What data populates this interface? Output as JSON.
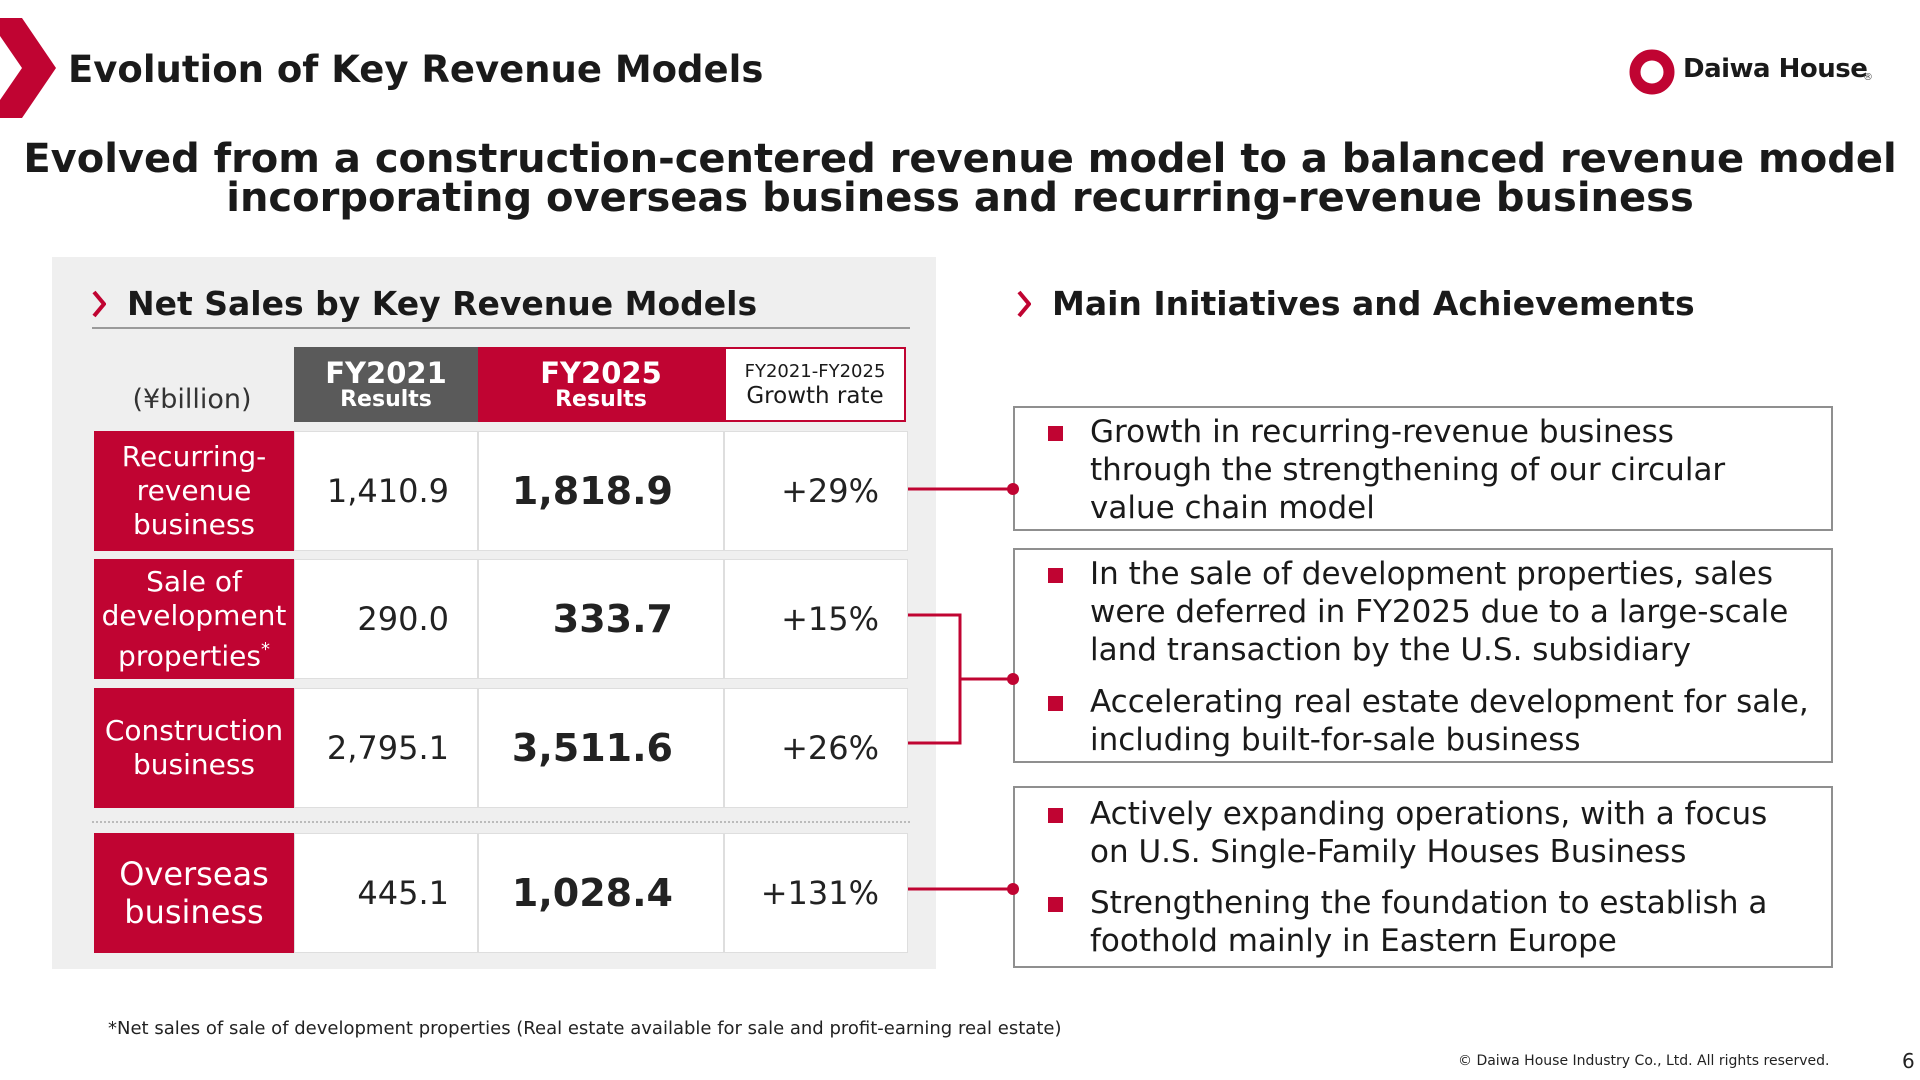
{
  "header": {
    "title": "Evolution of Key Revenue Models",
    "logo_text": "Daiwa House",
    "logo_reg": "®",
    "brand_color": "#c00432"
  },
  "headline": {
    "line1": "Evolved from a construction-centered revenue model to a balanced revenue model",
    "line2": "incorporating overseas business and recurring-revenue business"
  },
  "net_sales": {
    "heading": "Net Sales by Key Revenue Models",
    "unit": "(¥billion)",
    "col_fy2021": {
      "year": "FY2021",
      "sub": "Results"
    },
    "col_fy2025": {
      "year": "FY2025",
      "sub": "Results"
    },
    "col_growth": {
      "period": "FY2021-FY2025",
      "label": "Growth rate"
    },
    "rows": [
      {
        "label_lines": [
          "Recurring-",
          "revenue",
          "business"
        ],
        "fy2021": "1,410.9",
        "fy2025": "1,818.9",
        "growth": "+29%"
      },
      {
        "label_lines": [
          "Sale of",
          "development",
          "properties"
        ],
        "label_mark": "*",
        "fy2021": "290.0",
        "fy2025": "333.7",
        "growth": "+15%"
      },
      {
        "label_lines": [
          "Construction",
          "business"
        ],
        "fy2021": "2,795.1",
        "fy2025": "3,511.6",
        "growth": "+26%"
      },
      {
        "label_lines": [
          "Overseas",
          "business"
        ],
        "fy2021": "445.1",
        "fy2025": "1,028.4",
        "growth": "+131%"
      }
    ]
  },
  "initiatives": {
    "heading": "Main Initiatives and Achievements",
    "boxes": [
      {
        "bullets": [
          [
            "Growth in recurring-revenue business",
            "through the strengthening of our circular",
            "value chain model"
          ]
        ]
      },
      {
        "bullets": [
          [
            "In the sale of development properties, sales",
            "were deferred in FY2025 due to a large-scale",
            "land transaction by the U.S. subsidiary"
          ],
          [
            "Accelerating real estate development for sale,",
            "including built-for-sale business"
          ]
        ]
      },
      {
        "bullets": [
          [
            "Actively expanding operations, with a focus",
            "on U.S. Single-Family Houses Business"
          ],
          [
            "Strengthening the foundation to establish a",
            "foothold mainly in Eastern Europe"
          ]
        ]
      }
    ]
  },
  "footer": {
    "footnote": "*Net sales of sale of development properties (Real estate available for sale and profit-earning real estate)",
    "copyright": "© Daiwa House Industry Co., Ltd. All rights reserved.",
    "page_number": "6"
  }
}
